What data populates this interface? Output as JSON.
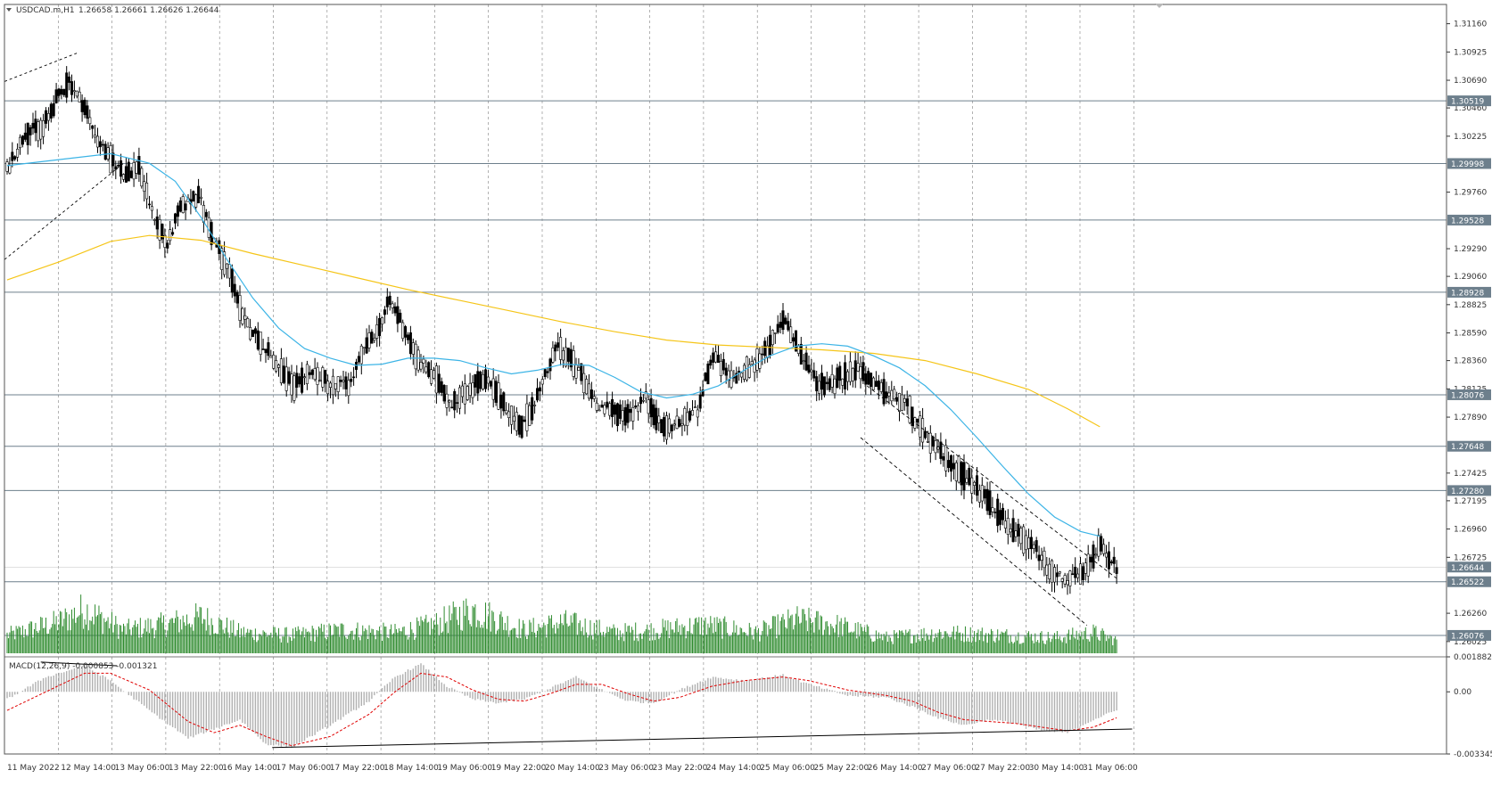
{
  "header": {
    "symbol_label": "USDCAD.m,H1",
    "ohlc_label": "1.26658 1.26661 1.26626 1.26644"
  },
  "macd_label": "MACD(12,26,9) -0.000853 -0.001321",
  "colors": {
    "candle": "#000000",
    "volume": "#2e8b2e",
    "ma_fast": "#3cb4e6",
    "ma_slow": "#f5c518",
    "macd_hist": "#b0b0b0",
    "macd_signal": "#e00000",
    "grid": "#808080",
    "level_line": "#6d7f8c",
    "marker_bg": "#6d7f8c"
  },
  "chart_data": {
    "type": "candlestick",
    "symbol": "USDCAD.m",
    "timeframe": "H1",
    "ylim": [
      1.2592,
      1.3132
    ],
    "price_ticks": [
      "1.31160",
      "1.30925",
      "1.30690",
      "1.30460",
      "1.30225",
      "1.29760",
      "1.29290",
      "1.29060",
      "1.28825",
      "1.28590",
      "1.28360",
      "1.28125",
      "1.27890",
      "1.27425",
      "1.27195",
      "1.26960",
      "1.26725",
      "1.26260",
      "1.26025"
    ],
    "level_markers": [
      "1.30519",
      "1.29998",
      "1.29528",
      "1.28928",
      "1.28076",
      "1.27648",
      "1.27280",
      "1.26644",
      "1.26522",
      "1.26076"
    ],
    "time_labels": [
      "11 May 2022",
      "12 May 14:00",
      "13 May 06:00",
      "13 May 22:00",
      "16 May 14:00",
      "17 May 06:00",
      "17 May 22:00",
      "18 May 14:00",
      "19 May 06:00",
      "19 May 22:00",
      "20 May 14:00",
      "23 May 06:00",
      "23 May 22:00",
      "24 May 14:00",
      "25 May 06:00",
      "25 May 22:00",
      "26 May 14:00",
      "27 May 06:00",
      "27 May 22:00",
      "30 May 14:00",
      "31 May 06:00"
    ],
    "price_path": [
      [
        0,
        1.2995
      ],
      [
        14,
        1.3025
      ],
      [
        28,
        1.303
      ],
      [
        40,
        1.3055
      ],
      [
        48,
        1.3068
      ],
      [
        58,
        1.305
      ],
      [
        70,
        1.302
      ],
      [
        80,
        1.3003
      ],
      [
        92,
        1.299
      ],
      [
        102,
        1.2998
      ],
      [
        112,
        1.296
      ],
      [
        124,
        1.2932
      ],
      [
        134,
        1.2962
      ],
      [
        148,
        1.2975
      ],
      [
        160,
        1.2935
      ],
      [
        172,
        1.291
      ],
      [
        182,
        1.2872
      ],
      [
        200,
        1.2846
      ],
      [
        222,
        1.2812
      ],
      [
        234,
        1.2828
      ],
      [
        252,
        1.2815
      ],
      [
        266,
        1.2818
      ],
      [
        276,
        1.2845
      ],
      [
        286,
        1.286
      ],
      [
        296,
        1.2885
      ],
      [
        306,
        1.2865
      ],
      [
        316,
        1.284
      ],
      [
        332,
        1.282
      ],
      [
        344,
        1.28
      ],
      [
        358,
        1.2815
      ],
      [
        372,
        1.2818
      ],
      [
        384,
        1.28
      ],
      [
        398,
        1.278
      ],
      [
        412,
        1.281
      ],
      [
        426,
        1.285
      ],
      [
        440,
        1.283
      ],
      [
        458,
        1.2798
      ],
      [
        478,
        1.279
      ],
      [
        494,
        1.2805
      ],
      [
        506,
        1.278
      ],
      [
        520,
        1.2784
      ],
      [
        534,
        1.2796
      ],
      [
        546,
        1.284
      ],
      [
        560,
        1.282
      ],
      [
        576,
        1.2832
      ],
      [
        590,
        1.285
      ],
      [
        602,
        1.287
      ],
      [
        614,
        1.284
      ],
      [
        628,
        1.2815
      ],
      [
        642,
        1.282
      ],
      [
        658,
        1.283
      ],
      [
        670,
        1.2815
      ],
      [
        682,
        1.2808
      ],
      [
        694,
        1.2802
      ],
      [
        706,
        1.278
      ],
      [
        720,
        1.276
      ],
      [
        736,
        1.2745
      ],
      [
        750,
        1.273
      ],
      [
        766,
        1.271
      ],
      [
        780,
        1.2692
      ],
      [
        796,
        1.2678
      ],
      [
        808,
        1.266
      ],
      [
        820,
        1.2655
      ],
      [
        832,
        1.2658
      ],
      [
        844,
        1.2682
      ],
      [
        858,
        1.2664
      ]
    ],
    "ma_fast_path": [
      [
        0,
        1.2998
      ],
      [
        40,
        1.3003
      ],
      [
        80,
        1.3008
      ],
      [
        110,
        1.3
      ],
      [
        130,
        1.2985
      ],
      [
        150,
        1.2955
      ],
      [
        170,
        1.292
      ],
      [
        190,
        1.2888
      ],
      [
        210,
        1.2863
      ],
      [
        230,
        1.2846
      ],
      [
        250,
        1.2838
      ],
      [
        270,
        1.2832
      ],
      [
        290,
        1.2833
      ],
      [
        310,
        1.2838
      ],
      [
        330,
        1.2838
      ],
      [
        350,
        1.2836
      ],
      [
        370,
        1.283
      ],
      [
        390,
        1.2825
      ],
      [
        410,
        1.2828
      ],
      [
        430,
        1.2833
      ],
      [
        450,
        1.2832
      ],
      [
        470,
        1.2822
      ],
      [
        490,
        1.281
      ],
      [
        510,
        1.2805
      ],
      [
        530,
        1.2808
      ],
      [
        550,
        1.2815
      ],
      [
        570,
        1.2828
      ],
      [
        590,
        1.284
      ],
      [
        610,
        1.2848
      ],
      [
        630,
        1.285
      ],
      [
        650,
        1.2848
      ],
      [
        670,
        1.284
      ],
      [
        690,
        1.283
      ],
      [
        710,
        1.2815
      ],
      [
        730,
        1.2795
      ],
      [
        750,
        1.2772
      ],
      [
        770,
        1.2748
      ],
      [
        790,
        1.2725
      ],
      [
        810,
        1.2706
      ],
      [
        830,
        1.2694
      ],
      [
        845,
        1.269
      ]
    ],
    "ma_slow_path": [
      [
        0,
        1.2903
      ],
      [
        40,
        1.2918
      ],
      [
        80,
        1.2935
      ],
      [
        110,
        1.294
      ],
      [
        150,
        1.2936
      ],
      [
        190,
        1.2925
      ],
      [
        230,
        1.2915
      ],
      [
        270,
        1.2905
      ],
      [
        310,
        1.2895
      ],
      [
        350,
        1.2886
      ],
      [
        390,
        1.2877
      ],
      [
        430,
        1.2868
      ],
      [
        470,
        1.286
      ],
      [
        510,
        1.2853
      ],
      [
        550,
        1.2849
      ],
      [
        590,
        1.2847
      ],
      [
        630,
        1.2845
      ],
      [
        670,
        1.2842
      ],
      [
        710,
        1.2836
      ],
      [
        750,
        1.2825
      ],
      [
        790,
        1.2812
      ],
      [
        820,
        1.2796
      ],
      [
        845,
        1.2781
      ]
    ],
    "volume_ylim": [
      0,
      100
    ],
    "volume_profile": [
      [
        0,
        35
      ],
      [
        40,
        60
      ],
      [
        60,
        85
      ],
      [
        90,
        45
      ],
      [
        120,
        55
      ],
      [
        150,
        70
      ],
      [
        180,
        40
      ],
      [
        220,
        35
      ],
      [
        260,
        45
      ],
      [
        300,
        40
      ],
      [
        330,
        55
      ],
      [
        360,
        85
      ],
      [
        400,
        45
      ],
      [
        430,
        60
      ],
      [
        470,
        40
      ],
      [
        500,
        45
      ],
      [
        540,
        55
      ],
      [
        580,
        40
      ],
      [
        610,
        65
      ],
      [
        640,
        55
      ],
      [
        680,
        30
      ],
      [
        720,
        40
      ],
      [
        770,
        35
      ],
      [
        810,
        30
      ],
      [
        840,
        40
      ],
      [
        858,
        25
      ]
    ],
    "macd": {
      "params": "12,26,9",
      "value": -0.000853,
      "signal_value": -0.001321,
      "ticks": [
        "0.001882",
        "0.00",
        "-0.003345"
      ],
      "ylim": [
        -0.003345,
        0.001882
      ]
    },
    "macd_hist_path": [
      [
        0,
        -0.0004
      ],
      [
        30,
        0.0008
      ],
      [
        60,
        0.0014
      ],
      [
        80,
        0.0006
      ],
      [
        110,
        -0.001
      ],
      [
        140,
        -0.0025
      ],
      [
        160,
        -0.002
      ],
      [
        180,
        -0.0015
      ],
      [
        200,
        -0.0028
      ],
      [
        220,
        -0.003
      ],
      [
        250,
        -0.0018
      ],
      [
        280,
        -0.0005
      ],
      [
        300,
        0.0008
      ],
      [
        320,
        0.0015
      ],
      [
        340,
        0.0003
      ],
      [
        360,
        -0.0004
      ],
      [
        380,
        -0.0006
      ],
      [
        400,
        -0.0004
      ],
      [
        420,
        0.0002
      ],
      [
        440,
        0.0008
      ],
      [
        460,
        0.0001
      ],
      [
        480,
        -0.0005
      ],
      [
        500,
        -0.0006
      ],
      [
        520,
        0.0001
      ],
      [
        545,
        0.0008
      ],
      [
        570,
        0.0006
      ],
      [
        600,
        0.0009
      ],
      [
        620,
        0.0004
      ],
      [
        650,
        -0.0002
      ],
      [
        680,
        -0.0003
      ],
      [
        700,
        -0.0008
      ],
      [
        720,
        -0.0014
      ],
      [
        740,
        -0.0018
      ],
      [
        760,
        -0.0015
      ],
      [
        780,
        -0.0017
      ],
      [
        800,
        -0.0021
      ],
      [
        820,
        -0.0022
      ],
      [
        840,
        -0.0015
      ],
      [
        858,
        -0.001
      ]
    ],
    "macd_signal_path": [
      [
        0,
        -0.001
      ],
      [
        30,
        0.0
      ],
      [
        60,
        0.001
      ],
      [
        80,
        0.001
      ],
      [
        110,
        0.0001
      ],
      [
        140,
        -0.0016
      ],
      [
        160,
        -0.0022
      ],
      [
        180,
        -0.0018
      ],
      [
        200,
        -0.0024
      ],
      [
        220,
        -0.0029
      ],
      [
        250,
        -0.0024
      ],
      [
        280,
        -0.0012
      ],
      [
        300,
        0.0
      ],
      [
        320,
        0.001
      ],
      [
        340,
        0.0008
      ],
      [
        360,
        0.0001
      ],
      [
        380,
        -0.0004
      ],
      [
        400,
        -0.0005
      ],
      [
        420,
        -0.0001
      ],
      [
        440,
        0.0004
      ],
      [
        460,
        0.0004
      ],
      [
        480,
        -0.0001
      ],
      [
        500,
        -0.0005
      ],
      [
        520,
        -0.0003
      ],
      [
        545,
        0.0003
      ],
      [
        570,
        0.0006
      ],
      [
        600,
        0.0008
      ],
      [
        620,
        0.0006
      ],
      [
        650,
        0.0001
      ],
      [
        680,
        -0.0002
      ],
      [
        700,
        -0.0005
      ],
      [
        720,
        -0.0011
      ],
      [
        740,
        -0.0015
      ],
      [
        760,
        -0.0016
      ],
      [
        780,
        -0.0017
      ],
      [
        800,
        -0.0019
      ],
      [
        820,
        -0.0021
      ],
      [
        840,
        -0.0019
      ],
      [
        858,
        -0.0014
      ]
    ]
  }
}
